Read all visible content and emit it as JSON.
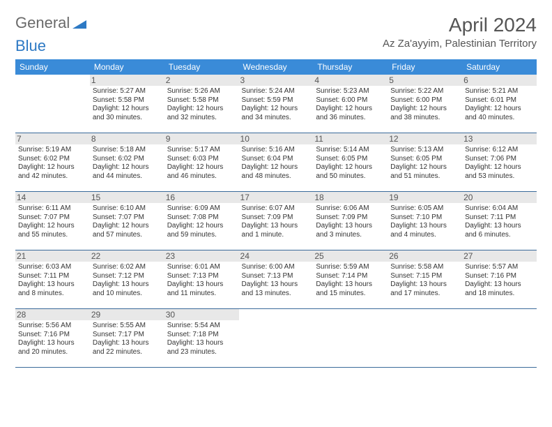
{
  "logo": {
    "part1": "General",
    "part2": "Blue"
  },
  "title": "April 2024",
  "location": "Az Za'ayyim, Palestinian Territory",
  "colors": {
    "header_bg": "#3a8bd8",
    "header_text": "#ffffff",
    "daynum_bg": "#e8e8e8",
    "border": "#3a6a9a",
    "logo_blue": "#2d79c4",
    "text": "#333333"
  },
  "weekdays": [
    "Sunday",
    "Monday",
    "Tuesday",
    "Wednesday",
    "Thursday",
    "Friday",
    "Saturday"
  ],
  "start_offset": 1,
  "days": [
    {
      "n": "1",
      "sunrise": "5:27 AM",
      "sunset": "5:58 PM",
      "daylight": "12 hours and 30 minutes."
    },
    {
      "n": "2",
      "sunrise": "5:26 AM",
      "sunset": "5:58 PM",
      "daylight": "12 hours and 32 minutes."
    },
    {
      "n": "3",
      "sunrise": "5:24 AM",
      "sunset": "5:59 PM",
      "daylight": "12 hours and 34 minutes."
    },
    {
      "n": "4",
      "sunrise": "5:23 AM",
      "sunset": "6:00 PM",
      "daylight": "12 hours and 36 minutes."
    },
    {
      "n": "5",
      "sunrise": "5:22 AM",
      "sunset": "6:00 PM",
      "daylight": "12 hours and 38 minutes."
    },
    {
      "n": "6",
      "sunrise": "5:21 AM",
      "sunset": "6:01 PM",
      "daylight": "12 hours and 40 minutes."
    },
    {
      "n": "7",
      "sunrise": "5:19 AM",
      "sunset": "6:02 PM",
      "daylight": "12 hours and 42 minutes."
    },
    {
      "n": "8",
      "sunrise": "5:18 AM",
      "sunset": "6:02 PM",
      "daylight": "12 hours and 44 minutes."
    },
    {
      "n": "9",
      "sunrise": "5:17 AM",
      "sunset": "6:03 PM",
      "daylight": "12 hours and 46 minutes."
    },
    {
      "n": "10",
      "sunrise": "5:16 AM",
      "sunset": "6:04 PM",
      "daylight": "12 hours and 48 minutes."
    },
    {
      "n": "11",
      "sunrise": "5:14 AM",
      "sunset": "6:05 PM",
      "daylight": "12 hours and 50 minutes."
    },
    {
      "n": "12",
      "sunrise": "5:13 AM",
      "sunset": "6:05 PM",
      "daylight": "12 hours and 51 minutes."
    },
    {
      "n": "13",
      "sunrise": "6:12 AM",
      "sunset": "7:06 PM",
      "daylight": "12 hours and 53 minutes."
    },
    {
      "n": "14",
      "sunrise": "6:11 AM",
      "sunset": "7:07 PM",
      "daylight": "12 hours and 55 minutes."
    },
    {
      "n": "15",
      "sunrise": "6:10 AM",
      "sunset": "7:07 PM",
      "daylight": "12 hours and 57 minutes."
    },
    {
      "n": "16",
      "sunrise": "6:09 AM",
      "sunset": "7:08 PM",
      "daylight": "12 hours and 59 minutes."
    },
    {
      "n": "17",
      "sunrise": "6:07 AM",
      "sunset": "7:09 PM",
      "daylight": "13 hours and 1 minute."
    },
    {
      "n": "18",
      "sunrise": "6:06 AM",
      "sunset": "7:09 PM",
      "daylight": "13 hours and 3 minutes."
    },
    {
      "n": "19",
      "sunrise": "6:05 AM",
      "sunset": "7:10 PM",
      "daylight": "13 hours and 4 minutes."
    },
    {
      "n": "20",
      "sunrise": "6:04 AM",
      "sunset": "7:11 PM",
      "daylight": "13 hours and 6 minutes."
    },
    {
      "n": "21",
      "sunrise": "6:03 AM",
      "sunset": "7:11 PM",
      "daylight": "13 hours and 8 minutes."
    },
    {
      "n": "22",
      "sunrise": "6:02 AM",
      "sunset": "7:12 PM",
      "daylight": "13 hours and 10 minutes."
    },
    {
      "n": "23",
      "sunrise": "6:01 AM",
      "sunset": "7:13 PM",
      "daylight": "13 hours and 11 minutes."
    },
    {
      "n": "24",
      "sunrise": "6:00 AM",
      "sunset": "7:13 PM",
      "daylight": "13 hours and 13 minutes."
    },
    {
      "n": "25",
      "sunrise": "5:59 AM",
      "sunset": "7:14 PM",
      "daylight": "13 hours and 15 minutes."
    },
    {
      "n": "26",
      "sunrise": "5:58 AM",
      "sunset": "7:15 PM",
      "daylight": "13 hours and 17 minutes."
    },
    {
      "n": "27",
      "sunrise": "5:57 AM",
      "sunset": "7:16 PM",
      "daylight": "13 hours and 18 minutes."
    },
    {
      "n": "28",
      "sunrise": "5:56 AM",
      "sunset": "7:16 PM",
      "daylight": "13 hours and 20 minutes."
    },
    {
      "n": "29",
      "sunrise": "5:55 AM",
      "sunset": "7:17 PM",
      "daylight": "13 hours and 22 minutes."
    },
    {
      "n": "30",
      "sunrise": "5:54 AM",
      "sunset": "7:18 PM",
      "daylight": "13 hours and 23 minutes."
    }
  ],
  "labels": {
    "sunrise": "Sunrise: ",
    "sunset": "Sunset: ",
    "daylight": "Daylight: "
  }
}
